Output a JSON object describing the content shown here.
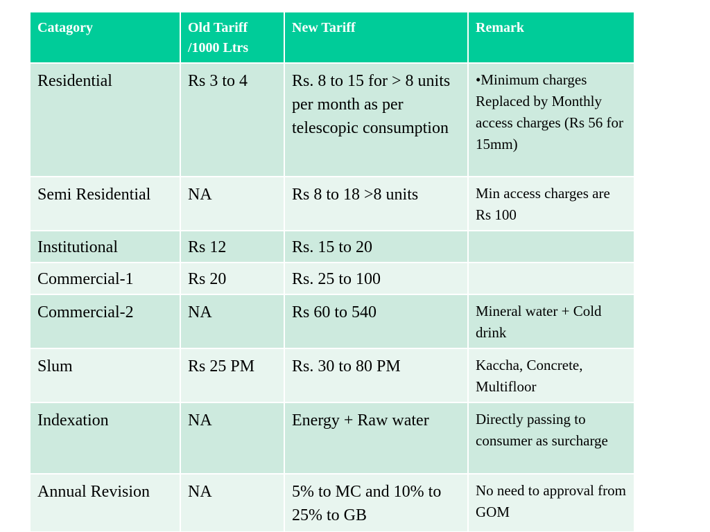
{
  "headers": {
    "category": "Catagory",
    "old_tariff": "Old Tariff /1000 Ltrs",
    "new_tariff": "New Tariff",
    "remark": "Remark"
  },
  "rows": [
    {
      "category": "Residential",
      "old_tariff": "Rs 3 to 4",
      "new_tariff": "Rs. 8 to 15 for > 8 units per month as per telescopic consumption",
      "remark": "•Minimum charges Replaced by Monthly access charges (Rs 56 for 15mm)"
    },
    {
      "category": "Semi Residential",
      "old_tariff": "NA",
      "new_tariff": "Rs 8 to 18 >8 units",
      "remark": "Min access charges are Rs 100"
    },
    {
      "category": "Institutional",
      "old_tariff": "Rs 12",
      "new_tariff": "Rs. 15 to 20",
      "remark": ""
    },
    {
      "category": "Commercial-1",
      "old_tariff": "Rs 20",
      "new_tariff": "Rs. 25 to 100",
      "remark": ""
    },
    {
      "category": "Commercial-2",
      "old_tariff": "NA",
      "new_tariff": "Rs 60 to 540",
      "remark": "Mineral water + Cold drink"
    },
    {
      "category": "Slum",
      "old_tariff": "Rs 25 PM",
      "new_tariff": "Rs. 30 to 80 PM",
      "remark": "Kaccha, Concrete, Multifloor"
    },
    {
      "category": "Indexation",
      "old_tariff": "NA",
      "new_tariff": "Energy + Raw water",
      "remark": "Directly passing to consumer as surcharge"
    },
    {
      "category": "Annual Revision",
      "old_tariff": "NA",
      "new_tariff": "5% to MC and 10% to 25% to GB",
      "remark": "No need to approval from GOM"
    }
  ],
  "colors": {
    "header_bg": "#00cc99",
    "row_dark": "#cdeade",
    "row_light": "#e8f5ef"
  }
}
